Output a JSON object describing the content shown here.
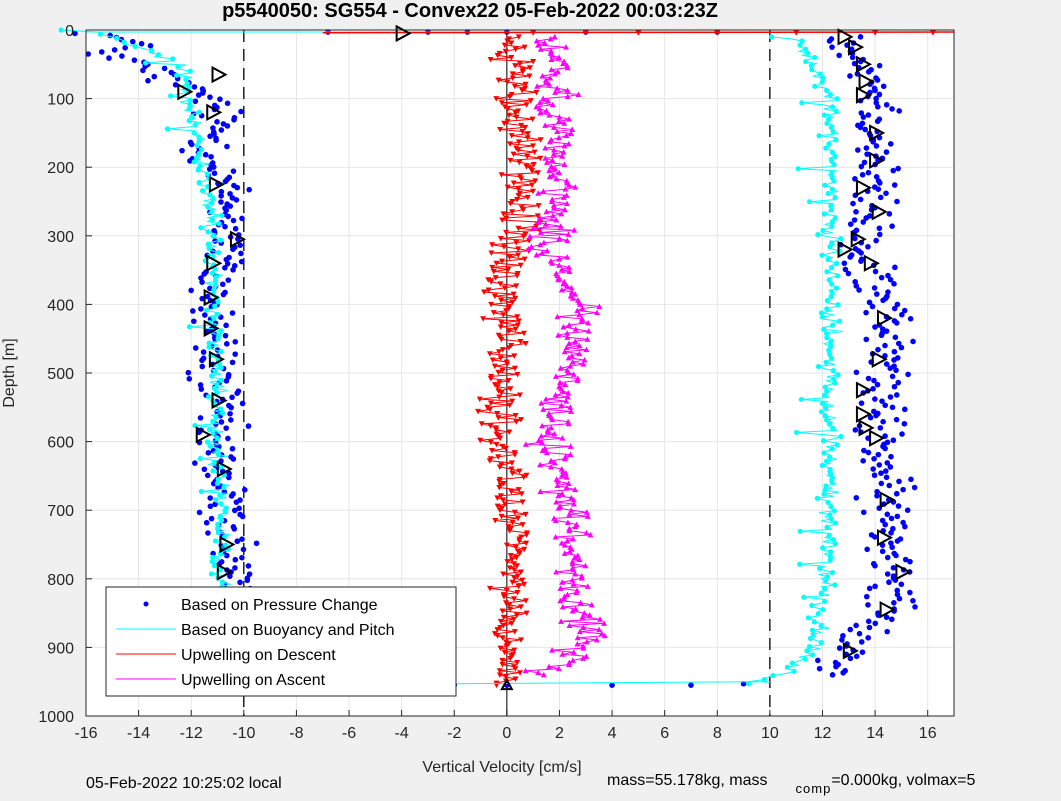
{
  "chart_data": {
    "type": "scatter",
    "title": "p5540050: SG554 - Convex22 05-Feb-2022 00:03:23Z",
    "xlabel": "Vertical Velocity [cm/s]",
    "ylabel": "Depth [m]",
    "xlim": [
      -16,
      17
    ],
    "ylim": [
      0,
      1000
    ],
    "y_reversed": true,
    "grid": true,
    "x_ticks": [
      -16,
      -14,
      -12,
      -10,
      -8,
      -6,
      -4,
      -2,
      0,
      2,
      4,
      6,
      8,
      10,
      12,
      14,
      16
    ],
    "y_ticks": [
      0,
      100,
      200,
      300,
      400,
      500,
      600,
      700,
      800,
      900,
      1000
    ],
    "reference_lines": [
      -10,
      0,
      10
    ],
    "legend_position": "bottom-left",
    "series": [
      {
        "name": "Based on Pressure Change",
        "color": "#0000ff",
        "marker": "dot",
        "profiles": [
          {
            "points": [
              [
                -15.5,
                5
              ],
              [
                -14.2,
                20
              ],
              [
                -15.2,
                35
              ],
              [
                -13.6,
                55
              ],
              [
                -12.6,
                80
              ],
              [
                -11.2,
                100
              ],
              [
                -11,
                140
              ],
              [
                -11.3,
                190
              ],
              [
                -10.6,
                240
              ],
              [
                -10.5,
                300
              ],
              [
                -11,
                350
              ],
              [
                -11.3,
                400
              ],
              [
                -11.1,
                450
              ],
              [
                -11.2,
                500
              ],
              [
                -11,
                550
              ],
              [
                -11.2,
                600
              ],
              [
                -10.9,
                650
              ],
              [
                -10.8,
                700
              ],
              [
                -10.4,
                750
              ],
              [
                -10.7,
                800
              ],
              [
                -10.8,
                850
              ],
              [
                -10.9,
                900
              ],
              [
                -11,
                940
              ],
              [
                -11,
                955
              ]
            ]
          },
          {
            "points": [
              [
                12.8,
                10
              ],
              [
                13.7,
                50
              ],
              [
                14.2,
                100
              ],
              [
                14.1,
                150
              ],
              [
                14,
                200
              ],
              [
                13.8,
                250
              ],
              [
                13.7,
                300
              ],
              [
                13,
                330
              ],
              [
                14.1,
                360
              ],
              [
                14.6,
                400
              ],
              [
                14.5,
                450
              ],
              [
                14.3,
                500
              ],
              [
                14.1,
                550
              ],
              [
                14.2,
                600
              ],
              [
                14.3,
                650
              ],
              [
                14.4,
                700
              ],
              [
                14.6,
                750
              ],
              [
                15,
                800
              ],
              [
                14.7,
                850
              ],
              [
                13,
                900
              ],
              [
                12.5,
                940
              ]
            ]
          }
        ],
        "surface_points": [
          [
            -6.8,
            0
          ],
          [
            -3,
            0
          ],
          [
            -1.5,
            0
          ],
          [
            0,
            0
          ],
          [
            3,
            0
          ],
          [
            8,
            0
          ],
          [
            -12,
            955
          ],
          [
            -8,
            955
          ],
          [
            -5,
            955
          ],
          [
            -2,
            955
          ],
          [
            0,
            955
          ],
          [
            4,
            955
          ],
          [
            7,
            955
          ],
          [
            9,
            953
          ]
        ]
      },
      {
        "name": "Based on Buoyancy and Pitch",
        "color": "#00ffff",
        "marker": "line",
        "profiles": [
          {
            "points": [
              [
                -16,
                0
              ],
              [
                -12.3,
                50
              ],
              [
                -12.2,
                100
              ],
              [
                -11.8,
                150
              ],
              [
                -11.5,
                200
              ],
              [
                -11.3,
                250
              ],
              [
                -11.2,
                300
              ],
              [
                -11.2,
                350
              ],
              [
                -11.1,
                400
              ],
              [
                -11.1,
                450
              ],
              [
                -11.1,
                500
              ],
              [
                -11,
                550
              ],
              [
                -11,
                600
              ],
              [
                -10.9,
                650
              ],
              [
                -10.8,
                700
              ],
              [
                -10.8,
                750
              ],
              [
                -10.8,
                800
              ],
              [
                -10.9,
                850
              ],
              [
                -11,
                900
              ],
              [
                -11,
                955
              ]
            ]
          },
          {
            "points": [
              [
                11,
                10
              ],
              [
                12.3,
                100
              ],
              [
                12.4,
                200
              ],
              [
                12.3,
                300
              ],
              [
                12.4,
                400
              ],
              [
                12.2,
                500
              ],
              [
                12.3,
                600
              ],
              [
                12.3,
                700
              ],
              [
                12.1,
                800
              ],
              [
                11.7,
                900
              ],
              [
                10.5,
                940
              ],
              [
                9,
                953
              ]
            ]
          }
        ]
      },
      {
        "name": "Upwelling on Descent",
        "color": "#ff0000",
        "marker": "triangle-down",
        "profiles": [
          {
            "points": [
              [
                0,
                10
              ],
              [
                0.5,
                50
              ],
              [
                0.2,
                100
              ],
              [
                0.5,
                150
              ],
              [
                0.6,
                200
              ],
              [
                0.5,
                250
              ],
              [
                0.4,
                300
              ],
              [
                0,
                350
              ],
              [
                -0.1,
                400
              ],
              [
                0,
                450
              ],
              [
                -0.1,
                500
              ],
              [
                -0.3,
                550
              ],
              [
                -0.4,
                600
              ],
              [
                0,
                650
              ],
              [
                0.1,
                700
              ],
              [
                0.3,
                750
              ],
              [
                0.2,
                800
              ],
              [
                0.1,
                850
              ],
              [
                0,
                900
              ],
              [
                0,
                955
              ]
            ]
          }
        ]
      },
      {
        "name": "Upwelling on Ascent",
        "color": "#ff00ff",
        "marker": "triangle-up",
        "profiles": [
          {
            "points": [
              [
                1.6,
                10
              ],
              [
                1.9,
                50
              ],
              [
                1.7,
                100
              ],
              [
                2,
                150
              ],
              [
                2.1,
                200
              ],
              [
                1.8,
                250
              ],
              [
                1.6,
                300
              ],
              [
                1.9,
                350
              ],
              [
                2.8,
                400
              ],
              [
                2.5,
                450
              ],
              [
                2.4,
                500
              ],
              [
                1.8,
                550
              ],
              [
                1.5,
                600
              ],
              [
                2,
                650
              ],
              [
                2.5,
                700
              ],
              [
                2.6,
                750
              ],
              [
                2.5,
                800
              ],
              [
                2.6,
                850
              ],
              [
                3.1,
                890
              ],
              [
                1.5,
                940
              ]
            ]
          }
        ]
      }
    ],
    "triangle_markers": [
      [
        -4,
        5
      ],
      [
        -11,
        65
      ],
      [
        -12.3,
        90
      ],
      [
        -11.2,
        120
      ],
      [
        -11.1,
        225
      ],
      [
        -10.3,
        305
      ],
      [
        -11.2,
        340
      ],
      [
        -11.3,
        390
      ],
      [
        -11.3,
        435
      ],
      [
        -11.1,
        480
      ],
      [
        -11,
        540
      ],
      [
        -11.6,
        590
      ],
      [
        -10.8,
        640
      ],
      [
        -10.7,
        750
      ],
      [
        -10.8,
        790
      ],
      [
        -11,
        830
      ],
      [
        -10.9,
        875
      ],
      [
        -11.3,
        910
      ],
      [
        -11.2,
        945
      ],
      [
        12.8,
        10
      ],
      [
        13.2,
        25
      ],
      [
        13.5,
        50
      ],
      [
        13.6,
        75
      ],
      [
        13.5,
        95
      ],
      [
        14,
        150
      ],
      [
        14,
        190
      ],
      [
        13.5,
        230
      ],
      [
        14.1,
        265
      ],
      [
        13.3,
        305
      ],
      [
        12.8,
        320
      ],
      [
        13.8,
        340
      ],
      [
        14.3,
        420
      ],
      [
        14.1,
        480
      ],
      [
        13.5,
        525
      ],
      [
        13.5,
        560
      ],
      [
        13.6,
        580
      ],
      [
        14,
        595
      ],
      [
        14.4,
        685
      ],
      [
        14.3,
        740
      ],
      [
        15,
        790
      ],
      [
        14.4,
        845
      ],
      [
        13,
        905
      ]
    ]
  },
  "footer": {
    "local_time": "05-Feb-2022 10:25:02 local",
    "mass_text": "mass=55.178kg, mass",
    "comp_sub": "comp",
    "comp_rest": "=0.000kg, volmax=5"
  }
}
